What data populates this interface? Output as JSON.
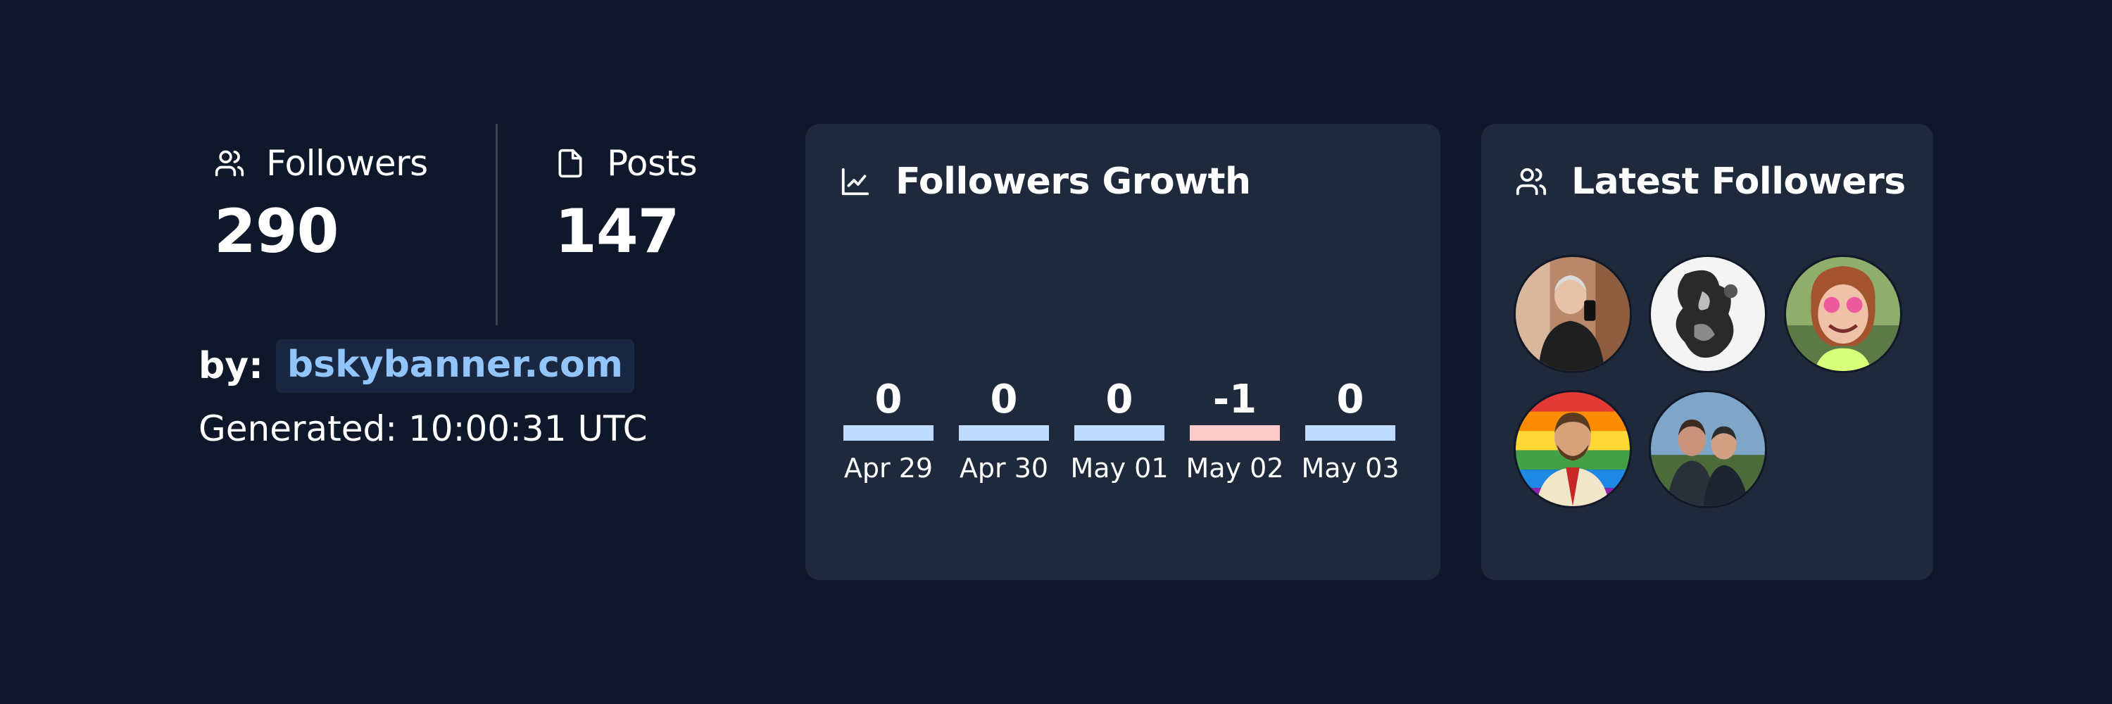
{
  "stats": {
    "followers": {
      "label": "Followers",
      "value": "290",
      "icon": "users-icon"
    },
    "posts": {
      "label": "Posts",
      "value": "147",
      "icon": "file-icon"
    }
  },
  "attribution": {
    "by_label": "by:",
    "link_text": "bskybanner.com",
    "generated": "Generated: 10:00:31 UTC"
  },
  "growth": {
    "title": "Followers Growth",
    "icon": "line-chart-icon"
  },
  "latest": {
    "title": "Latest Followers",
    "icon": "users-icon",
    "avatars": [
      {
        "name": "follower-avatar-1"
      },
      {
        "name": "follower-avatar-2"
      },
      {
        "name": "follower-avatar-3"
      },
      {
        "name": "follower-avatar-4"
      },
      {
        "name": "follower-avatar-5"
      }
    ]
  },
  "chart_data": {
    "type": "bar",
    "categories": [
      "Apr 29",
      "Apr 30",
      "May 01",
      "May 02",
      "May 03"
    ],
    "values": [
      0,
      0,
      0,
      -1,
      0
    ],
    "data_labels": [
      "0",
      "0",
      "0",
      "-1",
      "0"
    ],
    "title": "Followers Growth",
    "xlabel": "",
    "ylabel": "",
    "grid": false,
    "colors": {
      "positive": "#bfdbfe",
      "negative": "#fecaca"
    }
  },
  "colors": {
    "background": "#0f172a",
    "card": "#1e293b",
    "accent": "#93c5fd",
    "text": "#ffffff"
  }
}
